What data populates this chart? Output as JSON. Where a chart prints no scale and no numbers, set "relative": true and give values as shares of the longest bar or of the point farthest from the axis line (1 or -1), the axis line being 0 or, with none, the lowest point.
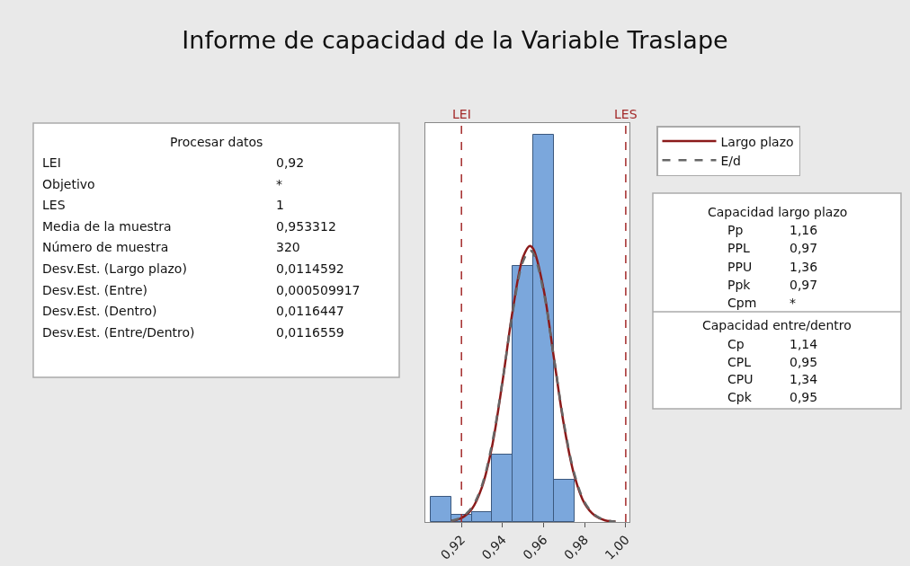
{
  "chart_data": {
    "type": "histogram",
    "title": "Informe de capacidad de la Variable Traslape",
    "relative": true,
    "bins": [
      0.905,
      0.915,
      0.925,
      0.935,
      0.945,
      0.955,
      0.965,
      0.975
    ],
    "values": [
      0.064,
      0.018,
      0.025,
      0.174,
      0.661,
      1.0,
      0.11
    ],
    "color": "#7ba7dc",
    "series": [
      {
        "type": "line",
        "name": "Largo plazo",
        "color": "#8b1a1a",
        "line_style": "solid",
        "x": [
          0.915,
          0.92,
          0.925,
          0.93,
          0.935,
          0.94,
          0.945,
          0.95,
          0.9533,
          0.955,
          0.96,
          0.965,
          0.97,
          0.975,
          0.98,
          0.985,
          0.99,
          0.995
        ],
        "values": [
          0.003,
          0.01,
          0.033,
          0.09,
          0.198,
          0.363,
          0.548,
          0.684,
          0.713,
          0.705,
          0.601,
          0.424,
          0.247,
          0.119,
          0.047,
          0.016,
          0.004,
          0.001
        ]
      },
      {
        "type": "line",
        "name": "E/d",
        "color": "#666666",
        "line_style": "dashed",
        "x": [
          0.915,
          0.92,
          0.925,
          0.93,
          0.935,
          0.94,
          0.945,
          0.95,
          0.9533,
          0.955,
          0.96,
          0.965,
          0.97,
          0.975,
          0.98,
          0.985,
          0.99,
          0.995
        ],
        "values": [
          0.003,
          0.012,
          0.037,
          0.095,
          0.205,
          0.365,
          0.544,
          0.673,
          0.701,
          0.694,
          0.594,
          0.425,
          0.252,
          0.124,
          0.051,
          0.018,
          0.005,
          0.001
        ]
      }
    ],
    "xlim": [
      0.9024,
      1.0018
    ],
    "xticks": [
      {
        "value": 0.92,
        "label": "0,92"
      },
      {
        "value": 0.94,
        "label": "0,94"
      },
      {
        "value": 0.96,
        "label": "0,96"
      },
      {
        "value": 0.98,
        "label": "0,98"
      },
      {
        "value": 1.0,
        "label": "1,00"
      }
    ],
    "ref_lines": [
      {
        "axis": "x",
        "value": 0.92,
        "label": "LEI",
        "color": "#a32a2a",
        "line_style": "dashed"
      },
      {
        "axis": "x",
        "value": 1.0,
        "label": "LES",
        "color": "#a32a2a",
        "line_style": "dashed"
      }
    ],
    "legend": "top right",
    "annotations": [
      "Procesar datos",
      "LEI",
      "0,92",
      "Objetivo",
      "*",
      "LES",
      "1",
      "Media de la muestra",
      "0,953312",
      "Número de muestra",
      "320",
      "Desv.Est. (Largo plazo)",
      "0,0114592",
      "Desv.Est. (Entre)",
      "0,000509917",
      "Desv.Est. (Dentro)",
      "0,0116447",
      "Desv.Est. (Entre/Dentro)",
      "0,0116559",
      "Capacidad largo plazo",
      "Pp",
      "1,16",
      "PPL",
      "0,97",
      "PPU",
      "1,36",
      "Ppk",
      "0,97",
      "Cpm",
      "*",
      "Capacidad entre/dentro",
      "Cp",
      "1,14",
      "CPL",
      "0,95",
      "CPU",
      "1,34",
      "Cpk",
      "0,95"
    ]
  }
}
